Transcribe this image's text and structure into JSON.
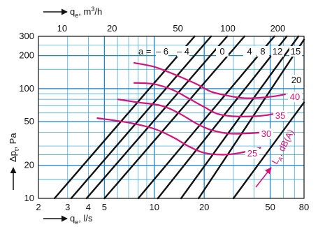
{
  "chart_data": {
    "type": "line",
    "x_scale": "log",
    "y_scale": "log",
    "xlim": [
      2,
      80
    ],
    "ylim": [
      10,
      300
    ],
    "grid": true,
    "x_ticks": [
      "2",
      "3",
      "4",
      "5",
      "10",
      "20",
      "50",
      "80"
    ],
    "x_tick_values": [
      2,
      3,
      4,
      5,
      10,
      20,
      50,
      80
    ],
    "y_ticks": [
      "10",
      "20",
      "50",
      "100",
      "200",
      "300"
    ],
    "y_tick_values": [
      10,
      20,
      50,
      100,
      200,
      300
    ],
    "top_ticks": [
      "10",
      "20",
      "50",
      "100",
      "200"
    ],
    "top_tick_values": [
      10,
      20,
      50,
      100,
      200
    ],
    "xlabel": {
      "main": "q",
      "sub": "e",
      "unit": ", l/s"
    },
    "top_xlabel": {
      "main": "q",
      "sub": "e",
      "unit": ", m",
      "sup": "3",
      "tail": "/h"
    },
    "ylabel": {
      "main": "Δp",
      "sub": "t",
      "unit": ", Pa"
    },
    "a_prefix": "a = ",
    "lines_a": [
      {
        "label": "– 6",
        "points": [
          [
            2.5,
            10
          ],
          [
            17.5,
            300
          ]
        ]
      },
      {
        "label": "– 4",
        "points": [
          [
            3.15,
            10
          ],
          [
            22,
            300
          ]
        ]
      },
      {
        "label": "",
        "points": [
          [
            3.9,
            10
          ],
          [
            27.5,
            300
          ]
        ]
      },
      {
        "label": "0",
        "points": [
          [
            5.0,
            10
          ],
          [
            35,
            300
          ]
        ]
      },
      {
        "label": "4",
        "points": [
          [
            8.0,
            10
          ],
          [
            53,
            300
          ]
        ]
      },
      {
        "label": "8",
        "points": [
          [
            10.5,
            10
          ],
          [
            63,
            300
          ]
        ]
      },
      {
        "label": "12",
        "points": [
          [
            14.5,
            10
          ],
          [
            74,
            300
          ]
        ]
      },
      {
        "label": "15",
        "points": [
          [
            18.5,
            10
          ],
          [
            80,
            280
          ]
        ]
      },
      {
        "label": "20",
        "points": [
          [
            30,
            10
          ],
          [
            80,
            75
          ]
        ]
      }
    ],
    "noise_label": {
      "main": "L",
      "sub": "A",
      "unit": ", dB(A)"
    },
    "series": [
      {
        "name": "40",
        "points": [
          [
            7.5,
            172
          ],
          [
            10,
            158
          ],
          [
            14,
            130
          ],
          [
            18,
            110
          ],
          [
            22,
            94
          ],
          [
            28,
            86
          ],
          [
            35,
            82
          ],
          [
            45,
            83
          ],
          [
            55,
            86
          ],
          [
            62,
            89
          ]
        ]
      },
      {
        "name": "35",
        "points": [
          [
            7.5,
            113
          ],
          [
            10,
            110
          ],
          [
            13,
            97
          ],
          [
            16,
            82
          ],
          [
            20,
            68
          ],
          [
            24,
            59
          ],
          [
            30,
            56
          ],
          [
            40,
            56
          ],
          [
            50,
            58
          ],
          [
            60,
            62
          ]
        ]
      },
      {
        "name": "30",
        "points": [
          [
            6.0,
            80
          ],
          [
            8,
            75
          ],
          [
            11,
            70
          ],
          [
            14,
            60
          ],
          [
            18,
            48
          ],
          [
            22,
            42
          ],
          [
            28,
            39
          ],
          [
            35,
            39
          ],
          [
            45,
            40
          ],
          [
            52,
            42
          ]
        ]
      },
      {
        "name": "25",
        "points": [
          [
            4.5,
            54
          ],
          [
            7,
            49
          ],
          [
            10,
            43
          ],
          [
            13,
            36
          ],
          [
            16,
            30
          ],
          [
            20,
            26
          ],
          [
            26,
            25
          ],
          [
            33,
            26
          ],
          [
            40,
            28
          ],
          [
            44,
            29
          ]
        ]
      }
    ]
  }
}
